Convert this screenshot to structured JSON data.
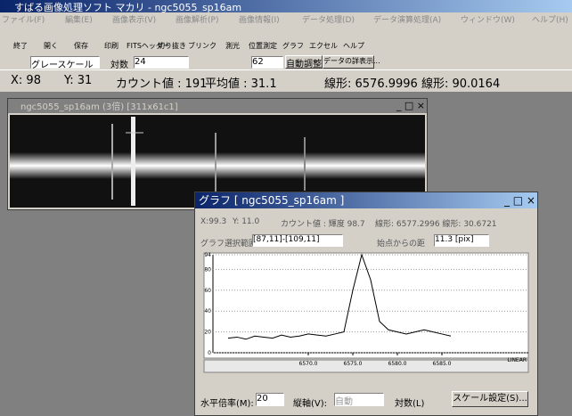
{
  "app_title": "すばる画像処理ソフト マカリ - ngc5055_sp16am",
  "menu": [
    "ファイル(F)",
    "編集(E)",
    "画像表示(V)",
    "画像解析(P)",
    "画像情報(I)",
    "データ処理(D)",
    "データ演算処理(A)",
    "ウィンドウ(W)",
    "ヘルプ(H)"
  ],
  "toolbar": [
    "終了",
    "開く",
    "保存",
    "印刷",
    "FITSヘッダー",
    "切り抜き",
    "ブリンク",
    "測光",
    "位置測定",
    "グラフ",
    "エクセル",
    "ヘルプ"
  ],
  "toolbar2": {
    "mode": "グレースケール",
    "log": "対数",
    "min": "24",
    "max": "62",
    "auto": "自動調整",
    "detail": "データの詳表示..."
  },
  "status": {
    "x": "X: 98",
    "y": "Y: 31",
    "count": "カウント値 : 191",
    "mean": "平均値 : 31.1",
    "linear": "線形: 6576.9996 線形: 90.0164"
  },
  "image_window": {
    "title": "ngc5055_sp16am (3倍) [311x61c1]"
  },
  "graph_window": {
    "title": "グラフ [ ngc5055_sp16am ]",
    "info": [
      "X:99.3",
      "Y: 11.0",
      "カウント値 : 輝度 98.7",
      "線形: 6577.2996 線形: 30.6721"
    ],
    "range_label": "グラフ選択範囲",
    "range": "[87,11]-[109,11]",
    "distance_label": "始点からの距",
    "distance": "11.3 [pix]",
    "chart_data": {
      "type": "line",
      "x": [
        6561,
        6562,
        6563,
        6564,
        6565,
        6566,
        6567,
        6568,
        6569,
        6570,
        6571,
        6572,
        6573,
        6574,
        6575,
        6576,
        6577,
        6578,
        6579,
        6580,
        6581,
        6582,
        6583,
        6584,
        6585,
        6586
      ],
      "values": [
        14,
        15,
        13,
        16,
        15,
        14,
        17,
        15,
        16,
        18,
        17,
        16,
        18,
        20,
        60,
        94,
        70,
        30,
        22,
        20,
        18,
        20,
        22,
        20,
        18,
        16
      ],
      "color": "#000000",
      "xlim": [
        6559.3,
        6594.7
      ],
      "ylim": [
        0,
        94
      ],
      "xticks": [
        {
          "value": 6570,
          "label": "6570.0"
        },
        {
          "value": 6575,
          "label": "6575.0"
        },
        {
          "value": 6580,
          "label": "6580.0"
        },
        {
          "value": 6585,
          "label": "6585.0"
        }
      ],
      "yticks": [
        0,
        20,
        40,
        60,
        80,
        94
      ],
      "grid": true,
      "scale": "LINEAR"
    },
    "controls": {
      "zoom_label": "水平倍率(M):",
      "zoom": "20",
      "axis_label": "縦軸(V):",
      "axis": "自動",
      "log": "対数(L)",
      "scale_button": "スケール設定(S)..."
    }
  }
}
